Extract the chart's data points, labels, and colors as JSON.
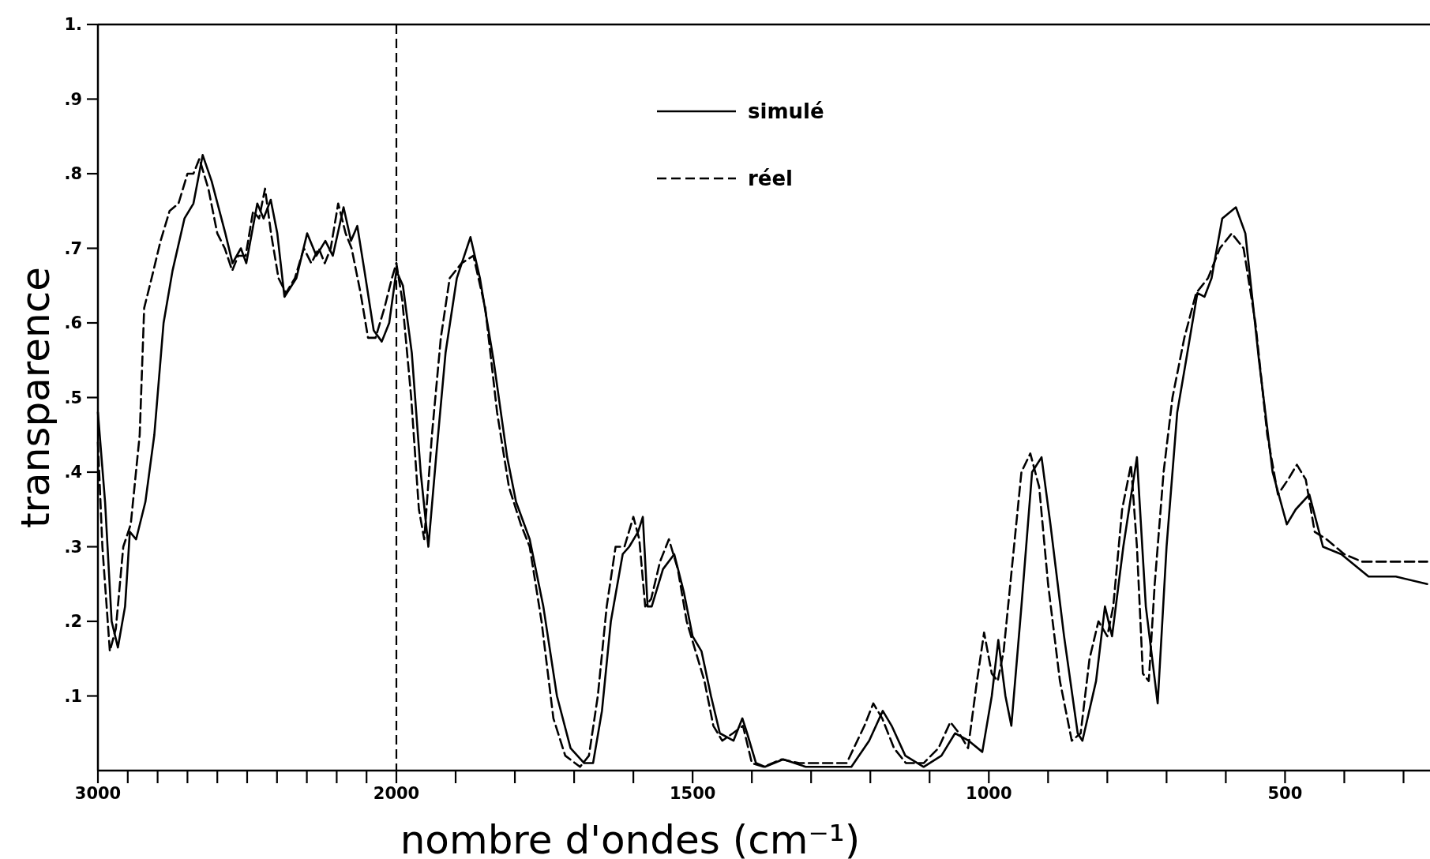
{
  "chart_data": [
    {
      "type": "line",
      "ylabel": "transparence",
      "xlim": [
        3000,
        2000
      ],
      "ylim": [
        0,
        1
      ],
      "xticks": [
        3000,
        {
          "value": 2900,
          "label": null
        },
        {
          "value": 2800,
          "label": null
        },
        {
          "value": 2700,
          "label": null
        },
        {
          "value": 2600,
          "label": null
        },
        {
          "value": 2500,
          "label": null
        },
        {
          "value": 2400,
          "label": null
        },
        {
          "value": 2300,
          "label": null
        },
        {
          "value": 2200,
          "label": null
        },
        {
          "value": 2100,
          "label": null
        },
        2000
      ],
      "yticks": [
        {
          "value": 0.1,
          "label": ".1"
        },
        {
          "value": 0.2,
          "label": ".2"
        },
        {
          "value": 0.3,
          "label": ".3"
        },
        {
          "value": 0.4,
          "label": ".4"
        },
        {
          "value": 0.5,
          "label": ".5"
        },
        {
          "value": 0.6,
          "label": ".6"
        },
        {
          "value": 0.7,
          "label": ".7"
        },
        {
          "value": 0.8,
          "label": ".8"
        },
        {
          "value": 0.9,
          "label": ".9"
        },
        {
          "value": 1,
          "label": "1."
        }
      ],
      "series": [
        {
          "color": "#000000",
          "line_style": "solid",
          "x": [
            3000,
            2976,
            2954,
            2933,
            2909,
            2893,
            2872,
            2841,
            2811,
            2780,
            2750,
            2710,
            2680,
            2649,
            2619,
            2573,
            2549,
            2521,
            2503,
            2466,
            2445,
            2421,
            2399,
            2375,
            2335,
            2299,
            2268,
            2238,
            2213,
            2177,
            2152,
            2131,
            2107,
            2076,
            2049,
            2024,
            2000
          ],
          "values": [
            0.48,
            0.36,
            0.2,
            0.165,
            0.22,
            0.32,
            0.31,
            0.36,
            0.45,
            0.6,
            0.67,
            0.74,
            0.76,
            0.825,
            0.79,
            0.72,
            0.68,
            0.7,
            0.68,
            0.76,
            0.74,
            0.765,
            0.72,
            0.635,
            0.66,
            0.72,
            0.69,
            0.71,
            0.69,
            0.755,
            0.71,
            0.73,
            0.67,
            0.59,
            0.575,
            0.6,
            0.67
          ]
        },
        {
          "color": "#000000",
          "line_style": "dashed",
          "x": [
            3000,
            2985,
            2960,
            2940,
            2915,
            2890,
            2860,
            2845,
            2820,
            2790,
            2760,
            2730,
            2700,
            2680,
            2660,
            2630,
            2600,
            2575,
            2550,
            2530,
            2505,
            2480,
            2460,
            2440,
            2420,
            2395,
            2370,
            2340,
            2310,
            2285,
            2260,
            2240,
            2220,
            2195,
            2170,
            2150,
            2120,
            2095,
            2070,
            2040,
            2015,
            2000
          ],
          "values": [
            0.44,
            0.3,
            0.16,
            0.19,
            0.3,
            0.33,
            0.45,
            0.62,
            0.66,
            0.71,
            0.75,
            0.76,
            0.8,
            0.8,
            0.82,
            0.78,
            0.72,
            0.7,
            0.67,
            0.69,
            0.69,
            0.75,
            0.74,
            0.78,
            0.72,
            0.66,
            0.64,
            0.66,
            0.7,
            0.68,
            0.7,
            0.68,
            0.7,
            0.76,
            0.72,
            0.7,
            0.64,
            0.58,
            0.58,
            0.62,
            0.66,
            0.68
          ]
        }
      ]
    },
    {
      "type": "line",
      "xlabel": "nombre d'ondes (cm⁻¹)",
      "xlim": [
        2000,
        250
      ],
      "ylim": [
        0,
        1
      ],
      "tick_labels": "x",
      "legend": "top left",
      "xticks": [
        {
          "value": 1900,
          "label": null
        },
        {
          "value": 1800,
          "label": null
        },
        {
          "value": 1700,
          "label": null
        },
        {
          "value": 1600,
          "label": null
        },
        1500,
        {
          "value": 1400,
          "label": null
        },
        {
          "value": 1300,
          "label": null
        },
        {
          "value": 1200,
          "label": null
        },
        {
          "value": 1100,
          "label": null
        },
        1000,
        {
          "value": 900,
          "label": null
        },
        {
          "value": 800,
          "label": null
        },
        {
          "value": 700,
          "label": null
        },
        {
          "value": 600,
          "label": null
        },
        500,
        {
          "value": 400,
          "label": null
        },
        {
          "value": 300,
          "label": null
        }
      ],
      "ref_lines": [
        {
          "axis": "x",
          "value": 2000,
          "line_style": "dashed",
          "color": "#000000"
        }
      ],
      "series": [
        {
          "name": "simulé",
          "color": "#000000",
          "line_style": "solid",
          "x": [
            2000,
            1989,
            1974,
            1959,
            1946,
            1933,
            1917,
            1898,
            1875,
            1859,
            1836,
            1813,
            1798,
            1775,
            1752,
            1729,
            1706,
            1683,
            1668,
            1653,
            1638,
            1618,
            1607,
            1592,
            1584,
            1576,
            1569,
            1550,
            1531,
            1515,
            1500,
            1485,
            1469,
            1454,
            1431,
            1416,
            1408,
            1393,
            1378,
            1347,
            1309,
            1278,
            1232,
            1202,
            1179,
            1164,
            1141,
            1110,
            1080,
            1057,
            1034,
            1011,
            995,
            984,
            972,
            962,
            945,
            927,
            911,
            896,
            873,
            850,
            842,
            819,
            804,
            792,
            773,
            750,
            735,
            715,
            700,
            682,
            667,
            648,
            636,
            624,
            606,
            583,
            567,
            544,
            521,
            497,
            482,
            459,
            436,
            405,
            359,
            313,
            260
          ],
          "values": [
            0.67,
            0.65,
            0.56,
            0.4,
            0.3,
            0.42,
            0.56,
            0.66,
            0.715,
            0.66,
            0.55,
            0.42,
            0.36,
            0.31,
            0.22,
            0.1,
            0.03,
            0.01,
            0.01,
            0.08,
            0.2,
            0.29,
            0.3,
            0.32,
            0.34,
            0.22,
            0.22,
            0.27,
            0.29,
            0.24,
            0.18,
            0.16,
            0.1,
            0.05,
            0.04,
            0.07,
            0.05,
            0.01,
            0.005,
            0.015,
            0.005,
            0.005,
            0.005,
            0.04,
            0.08,
            0.06,
            0.02,
            0.005,
            0.02,
            0.05,
            0.04,
            0.025,
            0.1,
            0.175,
            0.1,
            0.06,
            0.22,
            0.4,
            0.42,
            0.33,
            0.18,
            0.05,
            0.04,
            0.12,
            0.22,
            0.18,
            0.3,
            0.42,
            0.22,
            0.09,
            0.3,
            0.48,
            0.55,
            0.64,
            0.635,
            0.66,
            0.74,
            0.755,
            0.72,
            0.55,
            0.4,
            0.33,
            0.35,
            0.37,
            0.3,
            0.29,
            0.26,
            0.26,
            0.25
          ]
        },
        {
          "name": "réel",
          "color": "#000000",
          "line_style": "dashed",
          "x": [
            2000,
            1990,
            1975,
            1962,
            1953,
            1940,
            1925,
            1910,
            1890,
            1870,
            1850,
            1830,
            1810,
            1790,
            1775,
            1755,
            1735,
            1715,
            1690,
            1675,
            1660,
            1645,
            1630,
            1615,
            1600,
            1590,
            1580,
            1570,
            1555,
            1540,
            1525,
            1510,
            1495,
            1480,
            1465,
            1450,
            1432,
            1415,
            1400,
            1380,
            1350,
            1320,
            1280,
            1240,
            1210,
            1195,
            1180,
            1160,
            1140,
            1110,
            1085,
            1065,
            1050,
            1035,
            1020,
            1008,
            995,
            985,
            975,
            960,
            945,
            930,
            915,
            900,
            880,
            860,
            845,
            830,
            815,
            800,
            790,
            775,
            760,
            750,
            740,
            730,
            720,
            705,
            690,
            670,
            650,
            630,
            610,
            590,
            570,
            550,
            530,
            512,
            495,
            480,
            465,
            450,
            430,
            400,
            370,
            330,
            280,
            260
          ],
          "values": [
            0.68,
            0.63,
            0.5,
            0.35,
            0.31,
            0.45,
            0.58,
            0.66,
            0.68,
            0.69,
            0.62,
            0.48,
            0.38,
            0.33,
            0.3,
            0.2,
            0.07,
            0.02,
            0.005,
            0.02,
            0.1,
            0.22,
            0.3,
            0.3,
            0.34,
            0.31,
            0.22,
            0.23,
            0.28,
            0.31,
            0.27,
            0.2,
            0.16,
            0.12,
            0.06,
            0.04,
            0.05,
            0.06,
            0.01,
            0.005,
            0.015,
            0.01,
            0.01,
            0.01,
            0.06,
            0.09,
            0.07,
            0.03,
            0.01,
            0.01,
            0.03,
            0.065,
            0.05,
            0.03,
            0.12,
            0.185,
            0.13,
            0.12,
            0.16,
            0.28,
            0.4,
            0.425,
            0.38,
            0.25,
            0.12,
            0.04,
            0.05,
            0.15,
            0.2,
            0.18,
            0.22,
            0.35,
            0.41,
            0.3,
            0.13,
            0.12,
            0.25,
            0.4,
            0.5,
            0.58,
            0.64,
            0.66,
            0.7,
            0.72,
            0.7,
            0.6,
            0.45,
            0.37,
            0.39,
            0.41,
            0.39,
            0.32,
            0.31,
            0.29,
            0.28,
            0.28,
            0.28,
            0.28
          ]
        }
      ]
    }
  ]
}
